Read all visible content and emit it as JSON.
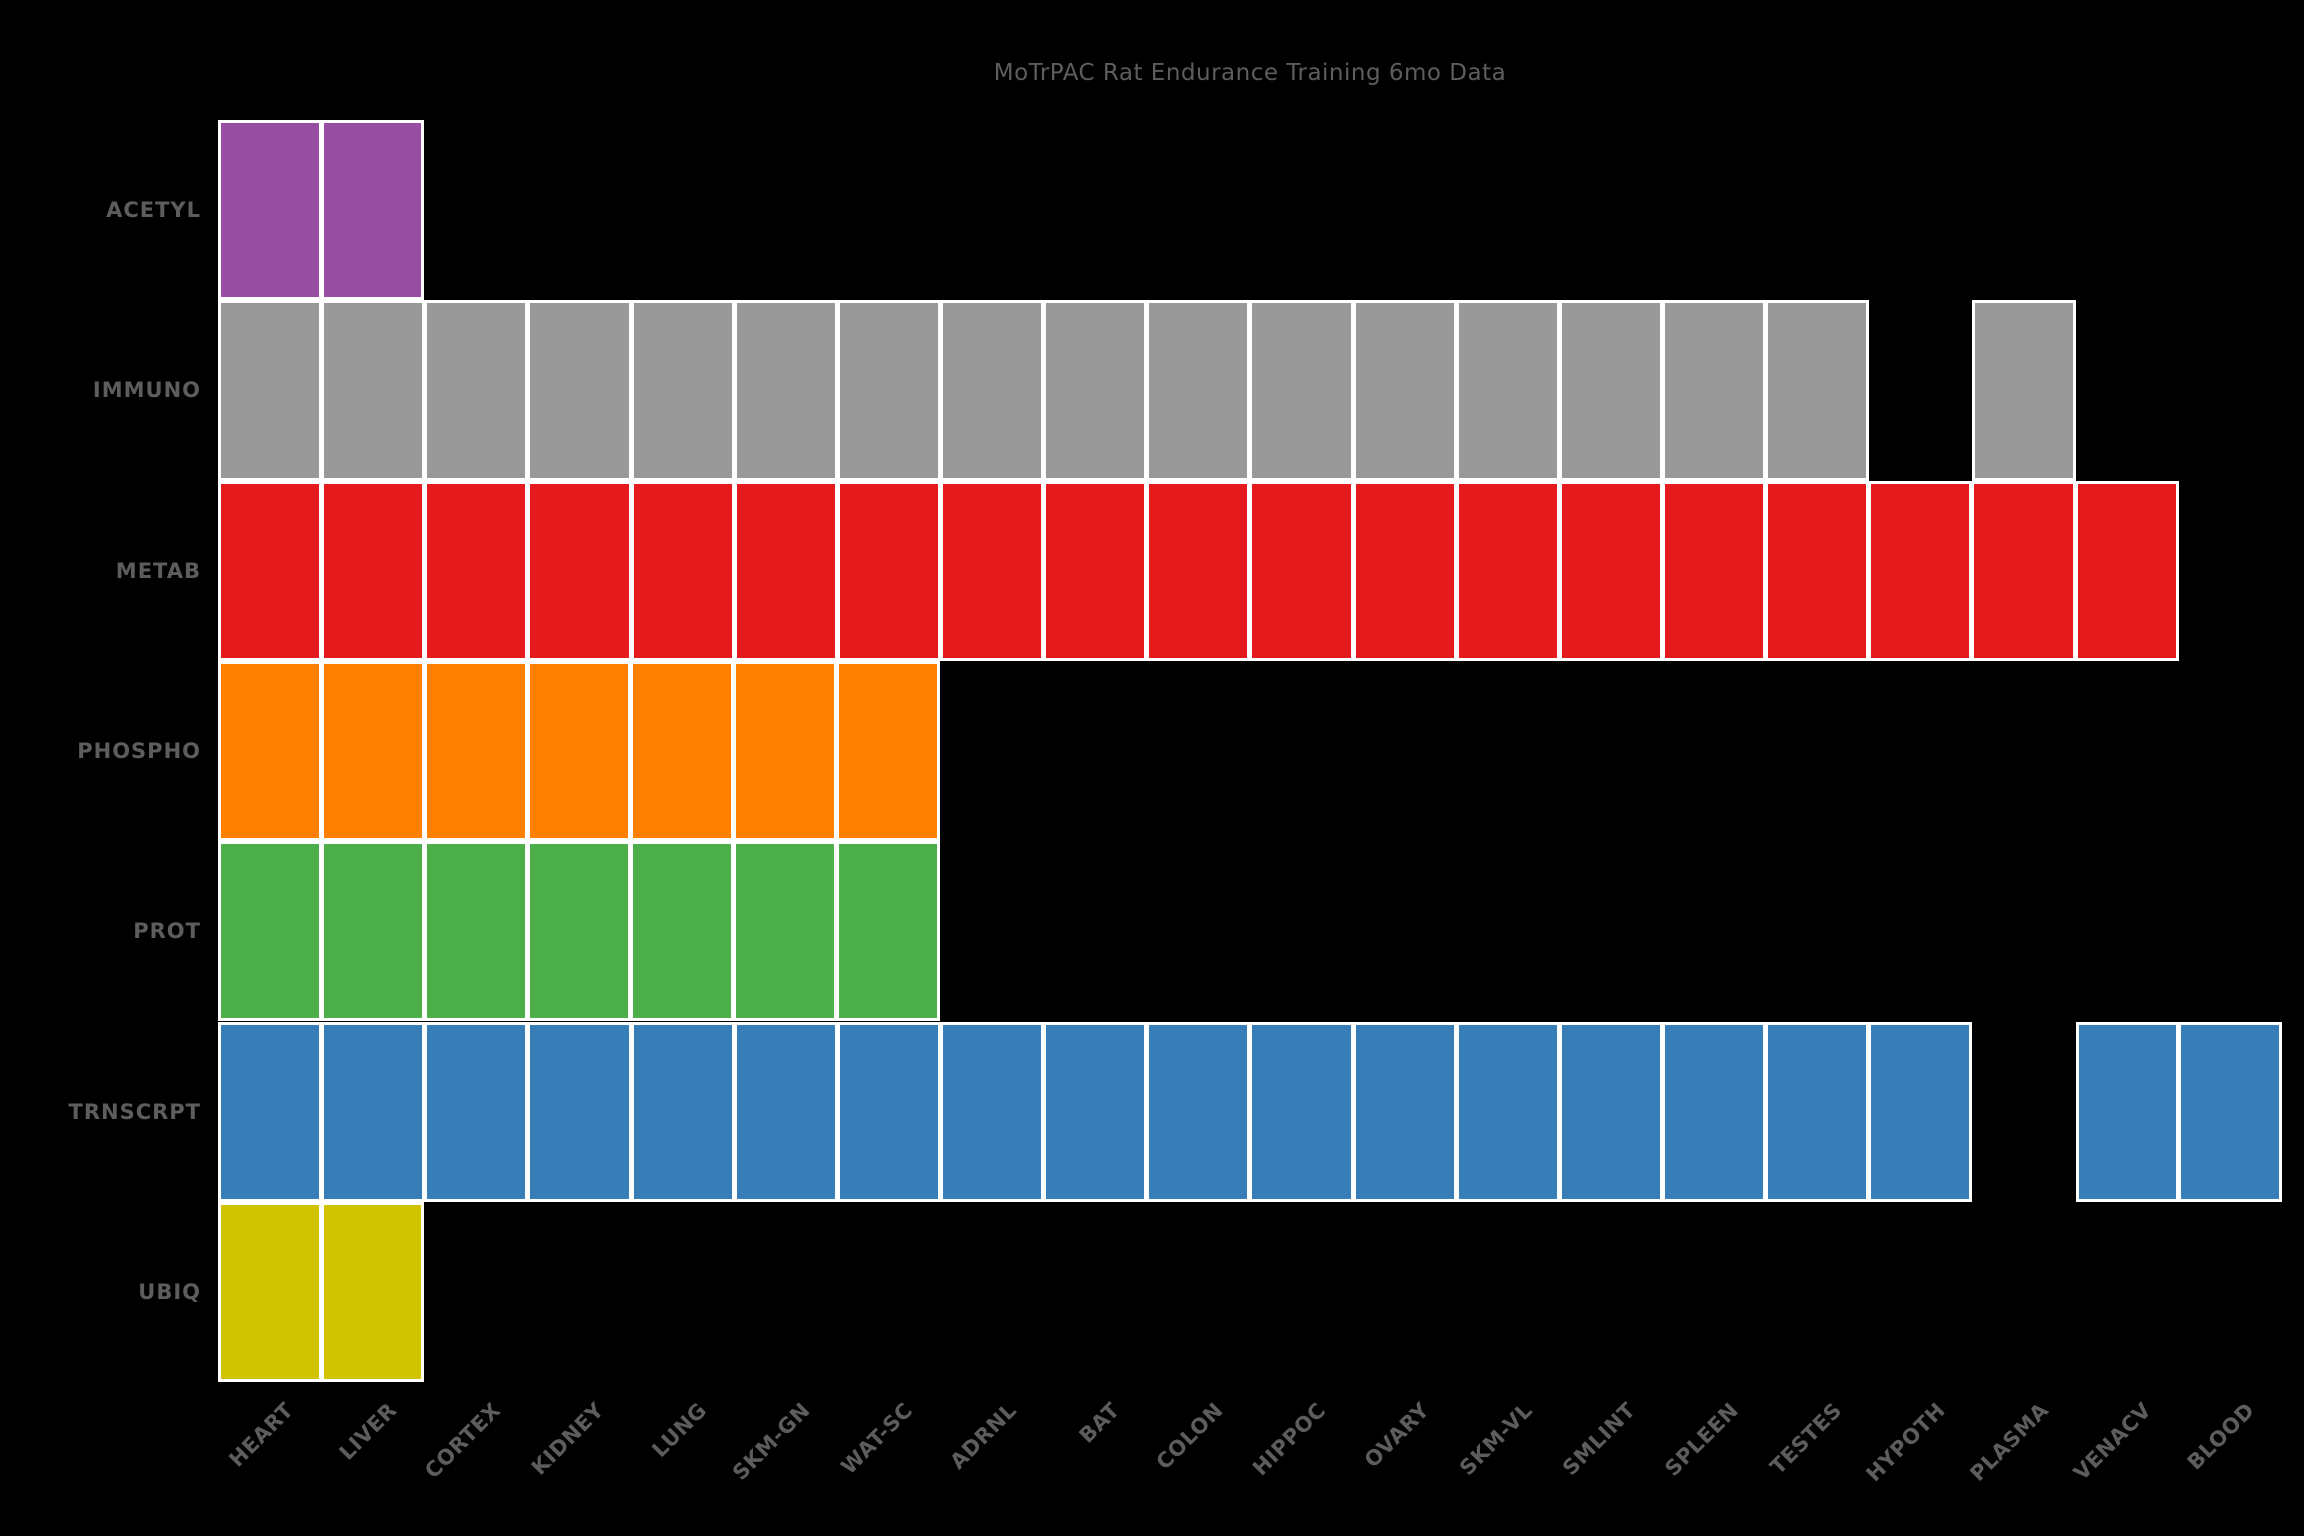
{
  "title": "MoTrPAC Rat Endurance Training 6mo Data",
  "background_color": "#000000",
  "text_color": "#5d5d5d",
  "chart_data": {
    "type": "heatmap",
    "title": "MoTrPAC Rat Endurance Training 6mo Data",
    "xlabel": "",
    "ylabel": "",
    "grid": false,
    "legend_position": "none",
    "columns": [
      "HEART",
      "LIVER",
      "CORTEX",
      "KIDNEY",
      "LUNG",
      "SKM-GN",
      "WAT-SC",
      "ADRNL",
      "BAT",
      "COLON",
      "HIPPOC",
      "OVARY",
      "SKM-VL",
      "SMLINT",
      "SPLEEN",
      "TESTES",
      "HYPOTH",
      "PLASMA",
      "VENACV",
      "BLOOD"
    ],
    "rows": [
      {
        "assay": "ACETYL",
        "color": "#984EA3",
        "present": [
          1,
          1,
          0,
          0,
          0,
          0,
          0,
          0,
          0,
          0,
          0,
          0,
          0,
          0,
          0,
          0,
          0,
          0,
          0,
          0
        ]
      },
      {
        "assay": "IMMUNO",
        "color": "#999999",
        "present": [
          1,
          1,
          1,
          1,
          1,
          1,
          1,
          1,
          1,
          1,
          1,
          1,
          1,
          1,
          1,
          1,
          0,
          1,
          0,
          0
        ]
      },
      {
        "assay": "METAB",
        "color": "#E41A1C",
        "present": [
          1,
          1,
          1,
          1,
          1,
          1,
          1,
          1,
          1,
          1,
          1,
          1,
          1,
          1,
          1,
          1,
          1,
          1,
          1,
          0
        ]
      },
      {
        "assay": "PHOSPHO",
        "color": "#FF7F00",
        "present": [
          1,
          1,
          1,
          1,
          1,
          1,
          1,
          0,
          0,
          0,
          0,
          0,
          0,
          0,
          0,
          0,
          0,
          0,
          0,
          0
        ]
      },
      {
        "assay": "PROT",
        "color": "#4DAF4A",
        "present": [
          1,
          1,
          1,
          1,
          1,
          1,
          1,
          0,
          0,
          0,
          0,
          0,
          0,
          0,
          0,
          0,
          0,
          0,
          0,
          0
        ]
      },
      {
        "assay": "TRNSCRPT",
        "color": "#377EB8",
        "present": [
          1,
          1,
          1,
          1,
          1,
          1,
          1,
          1,
          1,
          1,
          1,
          1,
          1,
          1,
          1,
          1,
          1,
          0,
          1,
          1
        ]
      },
      {
        "assay": "UBIQ",
        "color": "#D0C400",
        "present": [
          1,
          1,
          0,
          0,
          0,
          0,
          0,
          0,
          0,
          0,
          0,
          0,
          0,
          0,
          0,
          0,
          0,
          0,
          0,
          0
        ]
      }
    ],
    "cell_meaning": "filled cell = assay data available for tissue"
  }
}
